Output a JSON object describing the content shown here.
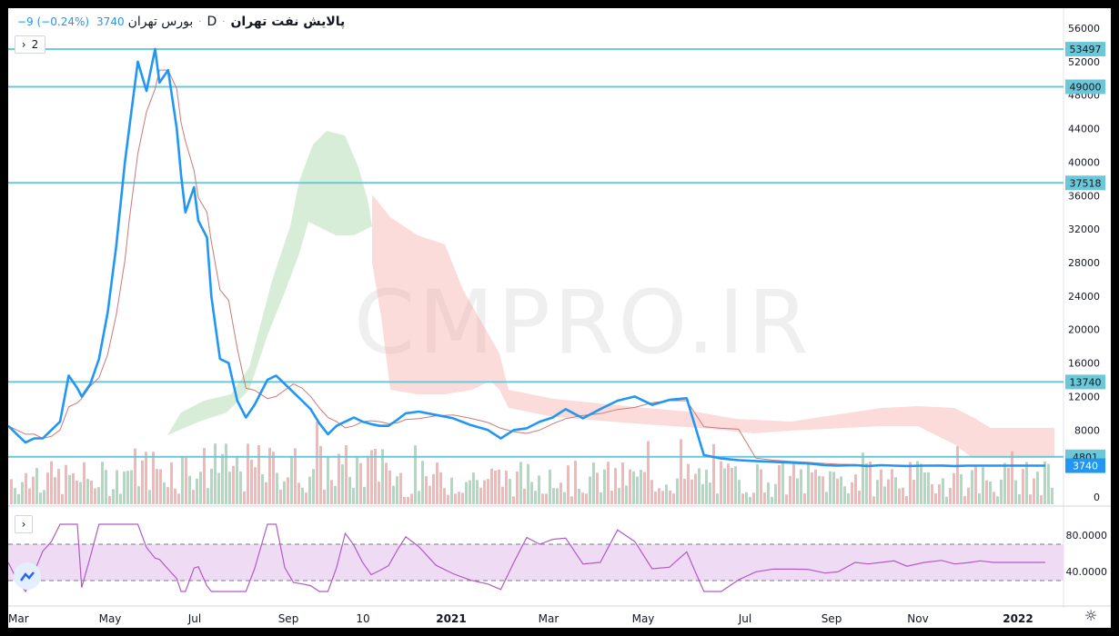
{
  "header": {
    "symbol": "پالایش نفت تهران",
    "interval": "D",
    "exchange": "بورس تهران",
    "last": "3740",
    "change": "−9 (−0.24%)",
    "pane_count": "2"
  },
  "watermark": "CMPRO.IR",
  "colors": {
    "price_line": "#2196f3",
    "kijun_line": "#c97a75",
    "cloud_bull": "#a8d8a8",
    "cloud_bear": "#f7a5a5",
    "hline": "#6bc8d8",
    "rsi_line": "#b05bc6",
    "rsi_band": "#efdcf4",
    "vol_up": "#9fd5b4",
    "vol_down": "#f4a9a9"
  },
  "chart_data": [
    {
      "type": "line",
      "title": "",
      "ylim": [
        0,
        58000
      ],
      "y_ticks": [
        "0",
        "4000",
        "8000",
        "12000",
        "16000",
        "20000",
        "24000",
        "28000",
        "32000",
        "36000",
        "40000",
        "44000",
        "48000",
        "52000",
        "56000"
      ],
      "x_ticks": [
        "Mar",
        "May",
        "Jul",
        "Sep",
        "10",
        "2021",
        "Mar",
        "May",
        "Jul",
        "Sep",
        "Nov",
        "2022"
      ],
      "horizontal_levels": [
        "53497",
        "49000",
        "37518",
        "13740",
        "4801"
      ],
      "last_price_label": "3740",
      "series": [
        {
          "x": [
            0,
            2,
            4,
            6,
            8,
            10,
            12,
            14,
            16,
            17,
            19,
            21,
            23,
            25,
            27,
            28,
            30,
            32,
            34,
            35,
            37,
            39,
            40,
            41,
            43,
            44,
            46,
            47,
            49,
            51,
            53,
            55,
            57,
            60,
            62,
            64,
            66,
            68,
            70,
            72,
            74,
            76,
            78,
            80,
            82,
            84,
            86,
            88,
            90,
            92,
            95,
            99,
            103,
            107,
            111,
            114,
            117,
            120,
            123,
            126,
            129,
            133,
            137,
            141,
            145,
            149,
            153,
            157,
            161,
            165,
            169,
            173,
            177,
            181,
            185,
            189,
            192,
            196,
            199,
            202,
            205,
            208,
            212,
            216,
            219,
            222,
            225,
            228,
            231,
            234,
            237,
            240
          ],
          "values": [
            8500,
            7500,
            6500,
            7000,
            7000,
            8000,
            9000,
            14500,
            13000,
            12000,
            13500,
            16500,
            22000,
            30000,
            40000,
            44000,
            52000,
            48500,
            53500,
            49500,
            51000,
            44000,
            38500,
            34000,
            37000,
            33000,
            31000,
            24000,
            16500,
            16000,
            11500,
            9500,
            11000,
            14000,
            14500,
            13500,
            12500,
            11500,
            10500,
            8800,
            7500,
            8500,
            9000,
            9500,
            9000,
            8700,
            8500,
            8500,
            9200,
            10000,
            10200,
            9800,
            9400,
            8600,
            8000,
            7000,
            8000,
            8200,
            9000,
            9500,
            10500,
            9400,
            10500,
            11500,
            12000,
            11000,
            11600,
            11800,
            5000,
            4600,
            4400,
            4300,
            4200,
            4100,
            4000,
            3800,
            3740,
            3800,
            3700,
            3800,
            3740,
            3700,
            3740,
            3750,
            3700,
            3740,
            3740,
            3740,
            3740,
            3740,
            3740,
            3740
          ]
        }
      ]
    },
    {
      "type": "line",
      "title": "",
      "ylim": [
        10,
        100
      ],
      "y_ticks": [
        "40.0000",
        "80.0000"
      ],
      "band": [
        30,
        70
      ]
    }
  ]
}
